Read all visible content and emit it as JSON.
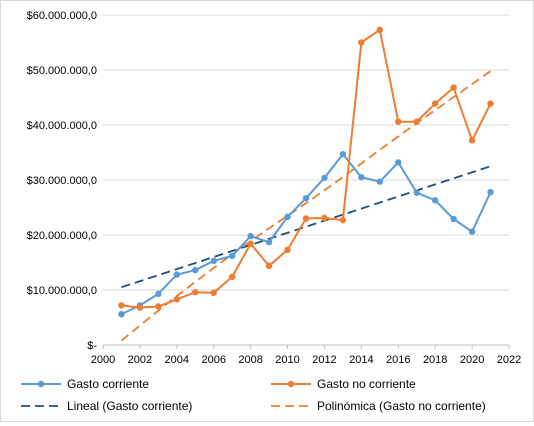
{
  "chart_data": {
    "type": "line",
    "x": [
      2001,
      2002,
      2003,
      2004,
      2005,
      2006,
      2007,
      2008,
      2009,
      2010,
      2011,
      2012,
      2013,
      2014,
      2015,
      2016,
      2017,
      2018,
      2019,
      2020,
      2021
    ],
    "xlim": [
      2000,
      2022
    ],
    "ylim": [
      0,
      60000000
    ],
    "x_ticks": [
      "2000",
      "2002",
      "2004",
      "2006",
      "2008",
      "2010",
      "2012",
      "2014",
      "2016",
      "2018",
      "2020",
      "2022"
    ],
    "y_ticks": [
      "$-",
      "$10.000.000,0",
      "$20.000.000,0",
      "$30.000.000,0",
      "$40.000.000,0",
      "$50.000.000,0",
      "$60.000.000,0"
    ],
    "grid": "horizontal",
    "legend_position": "bottom",
    "series": [
      {
        "name": "Gasto corriente",
        "color": "#5b9bd5",
        "values": [
          5600000,
          7200000,
          9300000,
          12800000,
          13600000,
          15300000,
          16200000,
          19800000,
          18700000,
          23300000,
          26700000,
          30400000,
          34700000,
          30500000,
          29700000,
          33200000,
          27700000,
          26300000,
          22900000,
          20600000,
          27800000
        ]
      },
      {
        "name": "Gasto no corriente",
        "color": "#ed7d31",
        "values": [
          7200000,
          6800000,
          7000000,
          8300000,
          9600000,
          9500000,
          12400000,
          18400000,
          14400000,
          17300000,
          23000000,
          23100000,
          22700000,
          55000000,
          57300000,
          40600000,
          40600000,
          43900000,
          46800000,
          37200000,
          43900000
        ]
      }
    ],
    "trendlines": [
      {
        "name": "Lineal (Gasto corriente)",
        "kind": "linear",
        "color": "#1f4e79",
        "start": [
          2001,
          10500000
        ],
        "end": [
          2021,
          32500000
        ]
      },
      {
        "name": "Polinómica (Gasto no corriente)",
        "kind": "polynomial",
        "color": "#ed7d31",
        "points": [
          [
            2001,
            800000
          ],
          [
            2004,
            9000000
          ],
          [
            2008,
            19000000
          ],
          [
            2012,
            28000000
          ],
          [
            2016,
            38000000
          ],
          [
            2021,
            49800000
          ]
        ]
      }
    ]
  }
}
